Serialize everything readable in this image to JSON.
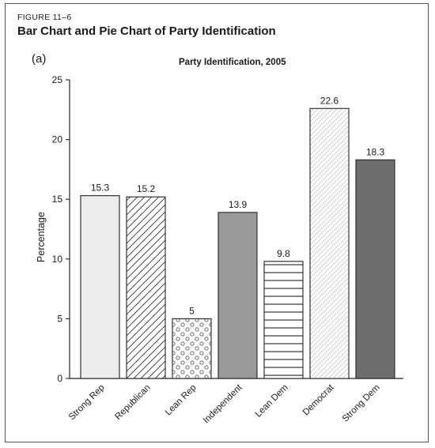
{
  "figure": {
    "label": "FIGURE 11–6",
    "title": "Bar Chart and Pie Chart of Party Identification",
    "panel": "(a)"
  },
  "chart_data": {
    "type": "bar",
    "title": "Party Identification, 2005",
    "xlabel": "",
    "ylabel": "Percentage",
    "ylim": [
      0,
      25
    ],
    "yticks": [
      0,
      5,
      10,
      15,
      20,
      25
    ],
    "grid": false,
    "categories": [
      "Strong Rep",
      "Republican",
      "Lean Rep",
      "Independent",
      "Lean Dem",
      "Democrat",
      "Strong Dem"
    ],
    "values": [
      15.3,
      15.2,
      5,
      13.9,
      9.8,
      22.6,
      18.3
    ],
    "value_labels": [
      "15.3",
      "15.2",
      "5",
      "13.9",
      "9.8",
      "22.6",
      "18.3"
    ],
    "bar_fills": [
      "light-gray",
      "diagonal-hatch",
      "circle-dots",
      "medium-gray",
      "horizontal-lines",
      "fine-dot-diagonal",
      "dark-gray"
    ]
  }
}
